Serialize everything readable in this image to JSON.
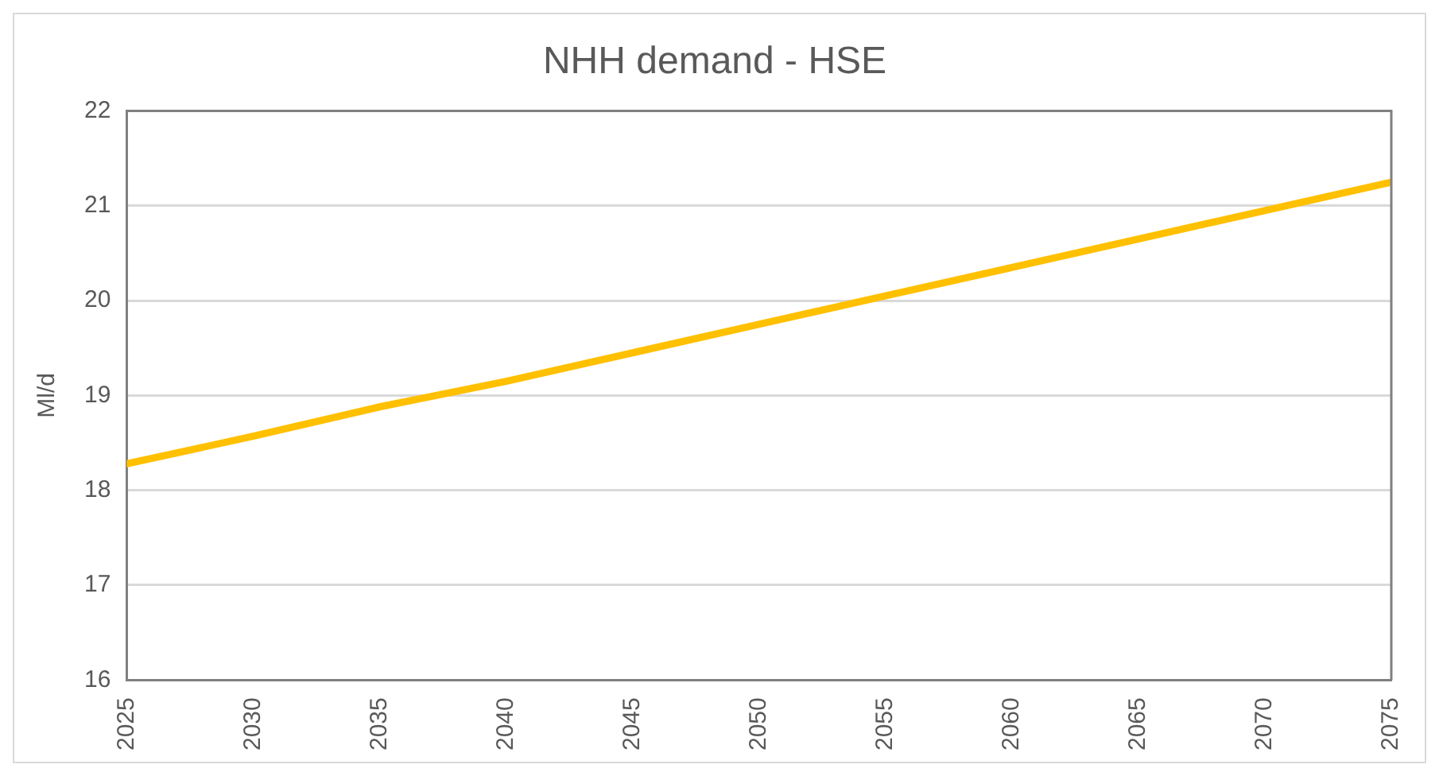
{
  "chart_data": {
    "type": "line",
    "title": "NHH demand - HSE",
    "ylabel": "Ml/d",
    "x": [
      2025,
      2030,
      2035,
      2040,
      2045,
      2050,
      2055,
      2060,
      2065,
      2070,
      2075
    ],
    "series": [
      {
        "color": "#ffc000",
        "values": [
          18.28,
          18.57,
          18.88,
          19.15,
          19.45,
          19.75,
          20.05,
          20.35,
          20.65,
          20.95,
          21.25
        ]
      }
    ],
    "xlim": [
      2025,
      2075
    ],
    "xticks": [
      2025,
      2030,
      2035,
      2040,
      2045,
      2050,
      2055,
      2060,
      2065,
      2070,
      2075
    ],
    "ylim": [
      16,
      22
    ],
    "yticks": [
      16,
      17,
      18,
      19,
      20,
      21,
      22
    ],
    "grid": "y",
    "legend": false,
    "marker": "none",
    "line_style": "solid"
  }
}
